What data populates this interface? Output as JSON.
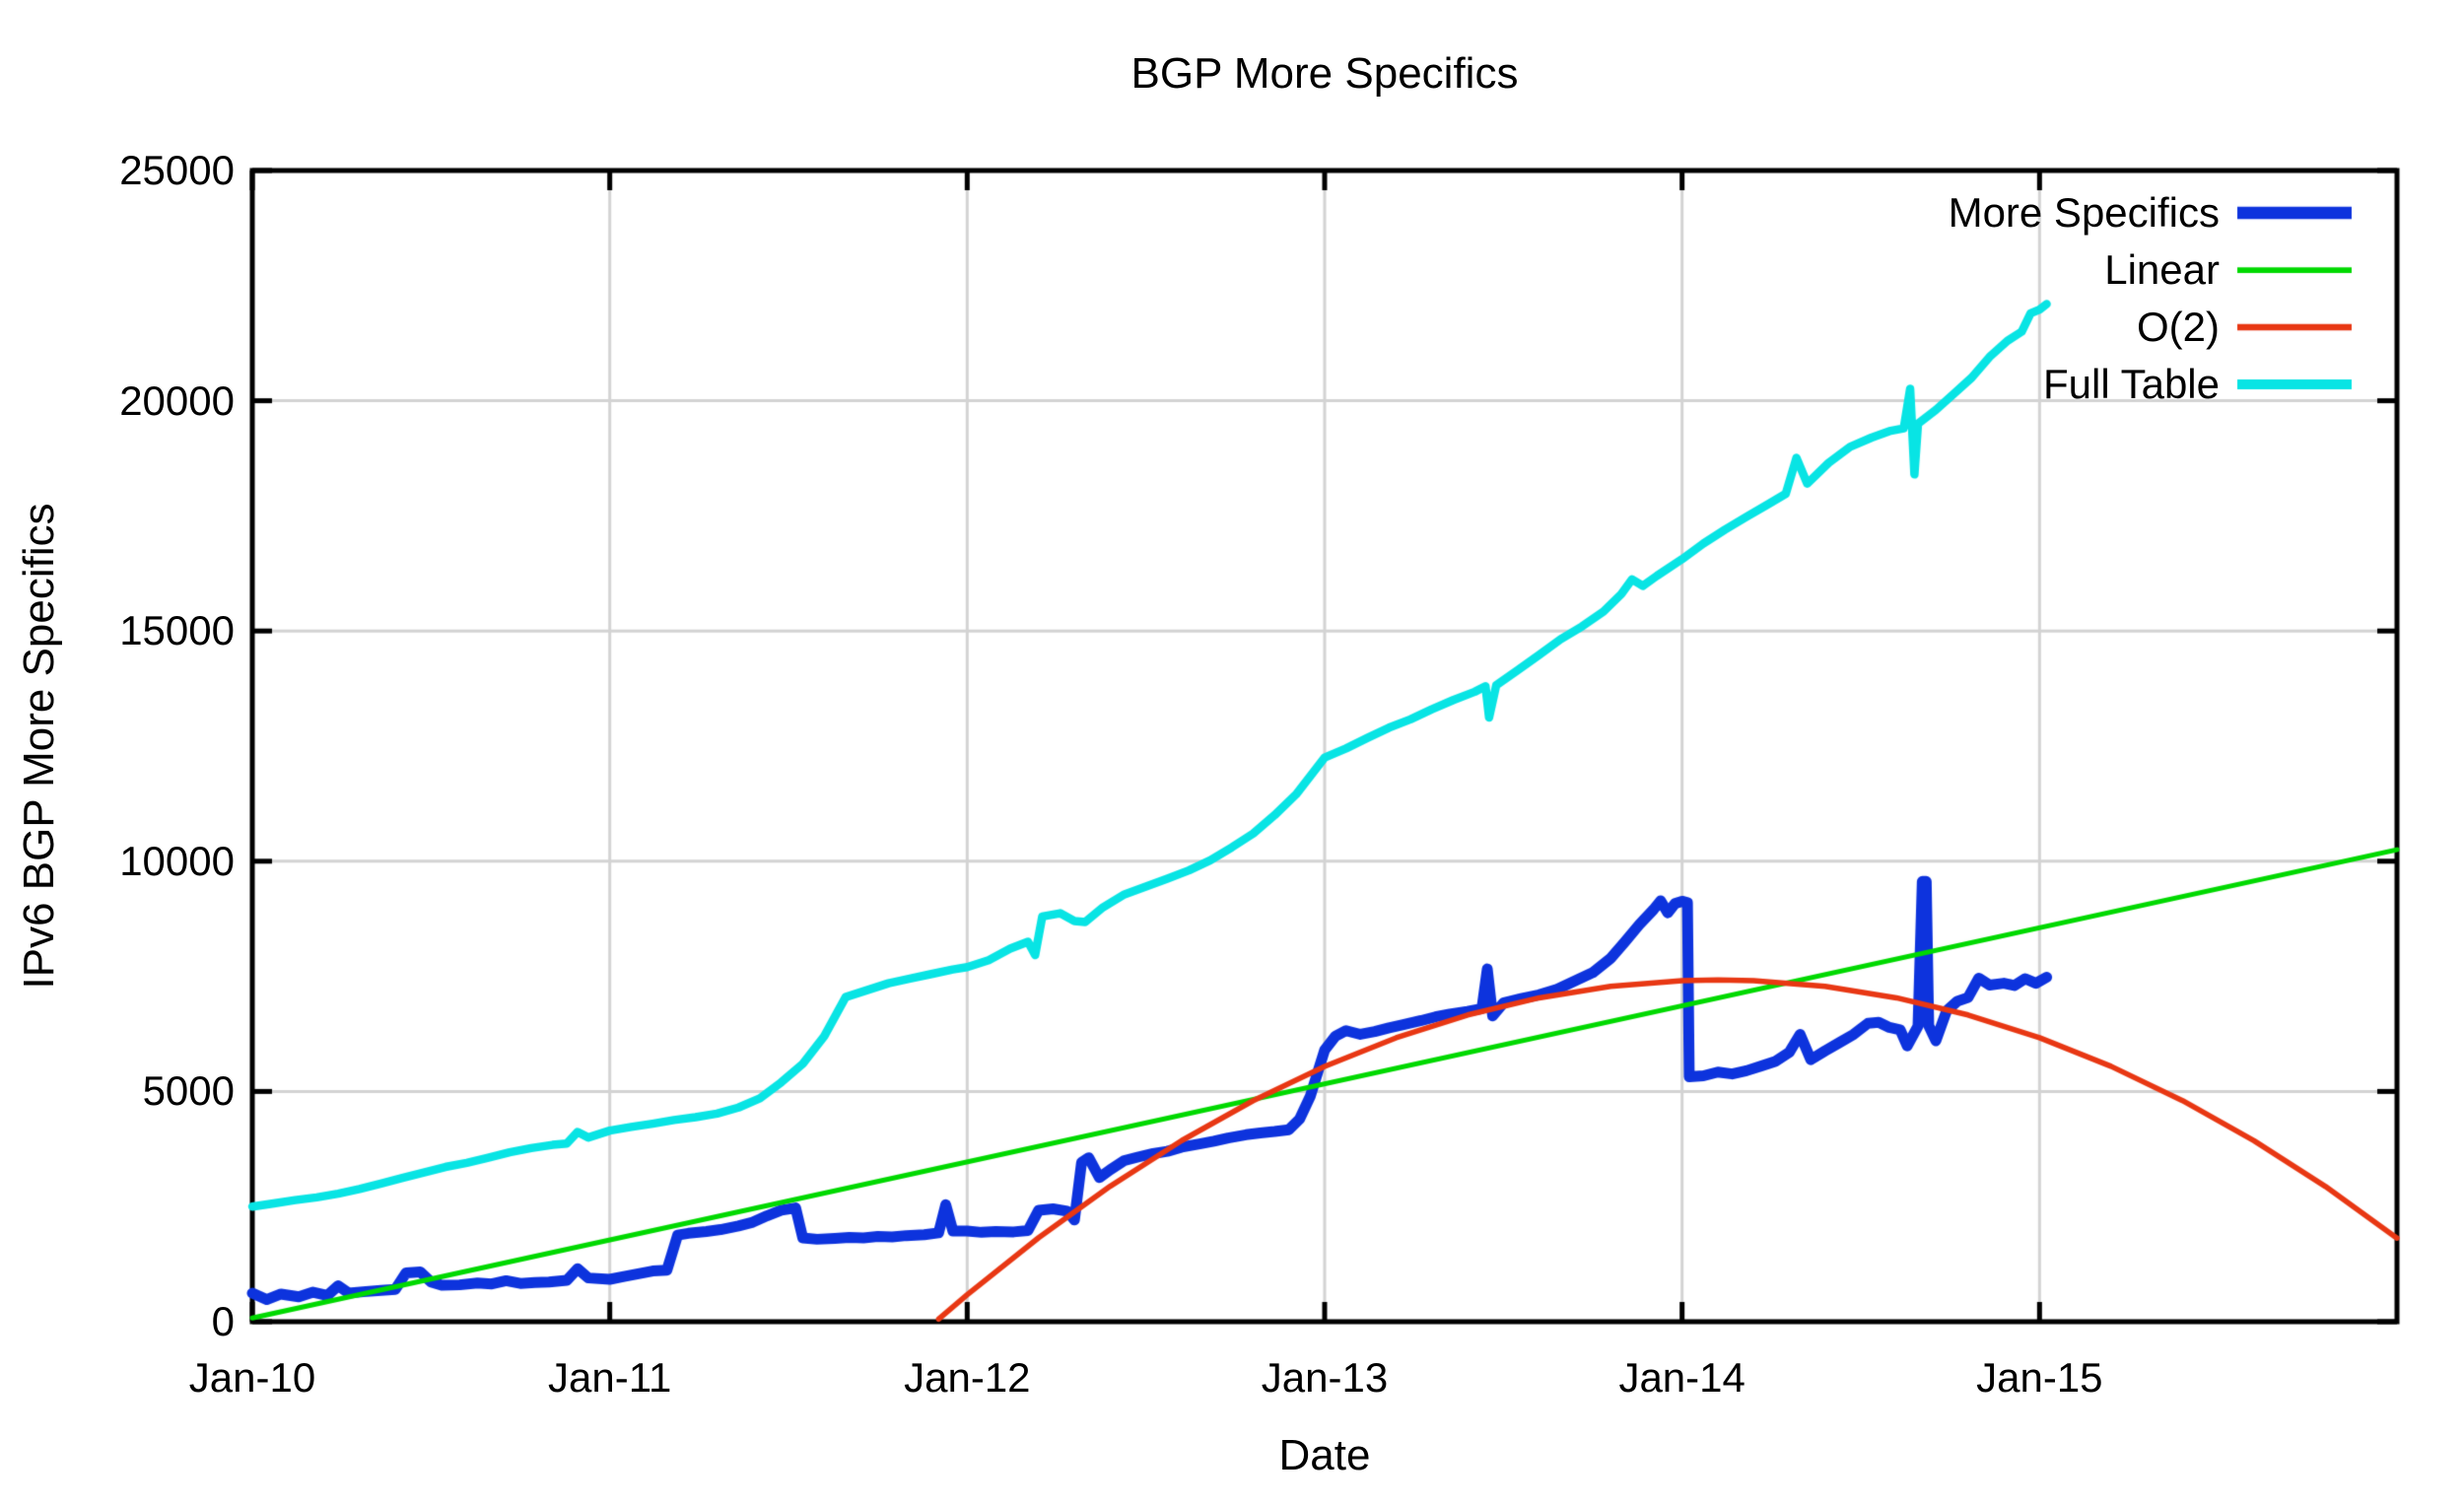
{
  "chart_data": {
    "type": "line",
    "title": "BGP More Specifics",
    "xlabel": "Date",
    "ylabel": "IPv6 BGP More Specifics",
    "x_range": [
      2010.0,
      2016.0
    ],
    "y_range": [
      0,
      25000
    ],
    "grid": true,
    "legend_position": "top-right-inside",
    "background": "#ffffff",
    "border_color": "#000000",
    "grid_color": "#d3d3d3",
    "text_color": "#000000",
    "x_ticks": [
      {
        "t": 2010,
        "label": "Jan-10"
      },
      {
        "t": 2011,
        "label": "Jan-11"
      },
      {
        "t": 2012,
        "label": "Jan-12"
      },
      {
        "t": 2013,
        "label": "Jan-13"
      },
      {
        "t": 2014,
        "label": "Jan-14"
      },
      {
        "t": 2015,
        "label": "Jan-15"
      }
    ],
    "y_ticks": [
      {
        "v": 0,
        "label": "0"
      },
      {
        "v": 5000,
        "label": "5000"
      },
      {
        "v": 10000,
        "label": "10000"
      },
      {
        "v": 15000,
        "label": "15000"
      },
      {
        "v": 20000,
        "label": "20000"
      },
      {
        "v": 25000,
        "label": "25000"
      }
    ],
    "series": [
      {
        "name": "More Specifics",
        "color": "#0d33dd",
        "width": 11,
        "points": [
          [
            2010.0,
            620
          ],
          [
            2010.04,
            480
          ],
          [
            2010.08,
            600
          ],
          [
            2010.13,
            540
          ],
          [
            2010.17,
            640
          ],
          [
            2010.21,
            570
          ],
          [
            2010.24,
            780
          ],
          [
            2010.27,
            620
          ],
          [
            2010.31,
            650
          ],
          [
            2010.36,
            680
          ],
          [
            2010.4,
            700
          ],
          [
            2010.43,
            1060
          ],
          [
            2010.47,
            1080
          ],
          [
            2010.5,
            860
          ],
          [
            2010.53,
            790
          ],
          [
            2010.58,
            800
          ],
          [
            2010.63,
            840
          ],
          [
            2010.67,
            820
          ],
          [
            2010.71,
            890
          ],
          [
            2010.75,
            830
          ],
          [
            2010.79,
            850
          ],
          [
            2010.83,
            860
          ],
          [
            2010.88,
            900
          ],
          [
            2010.91,
            1150
          ],
          [
            2010.94,
            950
          ],
          [
            2011.0,
            920
          ],
          [
            2011.04,
            980
          ],
          [
            2011.08,
            1040
          ],
          [
            2011.12,
            1100
          ],
          [
            2011.16,
            1120
          ],
          [
            2011.19,
            1880
          ],
          [
            2011.22,
            1920
          ],
          [
            2011.27,
            1960
          ],
          [
            2011.31,
            2000
          ],
          [
            2011.36,
            2080
          ],
          [
            2011.4,
            2160
          ],
          [
            2011.44,
            2300
          ],
          [
            2011.48,
            2420
          ],
          [
            2011.52,
            2470
          ],
          [
            2011.54,
            1820
          ],
          [
            2011.58,
            1790
          ],
          [
            2011.63,
            1810
          ],
          [
            2011.67,
            1830
          ],
          [
            2011.71,
            1820
          ],
          [
            2011.75,
            1850
          ],
          [
            2011.79,
            1840
          ],
          [
            2011.83,
            1870
          ],
          [
            2011.88,
            1890
          ],
          [
            2011.92,
            1930
          ],
          [
            2011.94,
            2540
          ],
          [
            2011.96,
            1970
          ],
          [
            2012.0,
            1970
          ],
          [
            2012.04,
            1940
          ],
          [
            2012.08,
            1960
          ],
          [
            2012.13,
            1950
          ],
          [
            2012.17,
            1980
          ],
          [
            2012.2,
            2420
          ],
          [
            2012.24,
            2450
          ],
          [
            2012.28,
            2400
          ],
          [
            2012.3,
            2210
          ],
          [
            2012.32,
            3460
          ],
          [
            2012.34,
            3560
          ],
          [
            2012.37,
            3130
          ],
          [
            2012.4,
            3300
          ],
          [
            2012.44,
            3500
          ],
          [
            2012.48,
            3580
          ],
          [
            2012.52,
            3650
          ],
          [
            2012.56,
            3700
          ],
          [
            2012.6,
            3790
          ],
          [
            2012.65,
            3860
          ],
          [
            2012.69,
            3920
          ],
          [
            2012.73,
            3990
          ],
          [
            2012.78,
            4060
          ],
          [
            2012.82,
            4100
          ],
          [
            2012.86,
            4130
          ],
          [
            2012.9,
            4170
          ],
          [
            2012.93,
            4400
          ],
          [
            2012.96,
            4900
          ],
          [
            2012.98,
            5400
          ],
          [
            2013.0,
            5900
          ],
          [
            2013.03,
            6200
          ],
          [
            2013.06,
            6320
          ],
          [
            2013.1,
            6240
          ],
          [
            2013.14,
            6300
          ],
          [
            2013.18,
            6380
          ],
          [
            2013.22,
            6450
          ],
          [
            2013.27,
            6540
          ],
          [
            2013.31,
            6620
          ],
          [
            2013.35,
            6680
          ],
          [
            2013.4,
            6740
          ],
          [
            2013.44,
            6800
          ],
          [
            2013.455,
            7660
          ],
          [
            2013.47,
            6640
          ],
          [
            2013.5,
            6920
          ],
          [
            2013.55,
            7020
          ],
          [
            2013.6,
            7100
          ],
          [
            2013.65,
            7220
          ],
          [
            2013.7,
            7400
          ],
          [
            2013.75,
            7580
          ],
          [
            2013.8,
            7890
          ],
          [
            2013.84,
            8250
          ],
          [
            2013.88,
            8620
          ],
          [
            2013.92,
            8950
          ],
          [
            2013.94,
            9140
          ],
          [
            2013.96,
            8880
          ],
          [
            2013.98,
            9080
          ],
          [
            2014.0,
            9130
          ],
          [
            2014.015,
            9100
          ],
          [
            2014.02,
            5320
          ],
          [
            2014.06,
            5340
          ],
          [
            2014.1,
            5420
          ],
          [
            2014.14,
            5380
          ],
          [
            2014.18,
            5450
          ],
          [
            2014.22,
            5550
          ],
          [
            2014.26,
            5650
          ],
          [
            2014.3,
            5850
          ],
          [
            2014.33,
            6240
          ],
          [
            2014.36,
            5690
          ],
          [
            2014.4,
            5880
          ],
          [
            2014.44,
            6060
          ],
          [
            2014.48,
            6240
          ],
          [
            2014.52,
            6480
          ],
          [
            2014.55,
            6500
          ],
          [
            2014.58,
            6390
          ],
          [
            2014.61,
            6340
          ],
          [
            2014.63,
            5990
          ],
          [
            2014.66,
            6420
          ],
          [
            2014.672,
            9560
          ],
          [
            2014.683,
            9560
          ],
          [
            2014.69,
            6430
          ],
          [
            2014.71,
            6100
          ],
          [
            2014.74,
            6750
          ],
          [
            2014.77,
            6960
          ],
          [
            2014.8,
            7040
          ],
          [
            2014.83,
            7460
          ],
          [
            2014.86,
            7310
          ],
          [
            2014.9,
            7350
          ],
          [
            2014.93,
            7300
          ],
          [
            2014.96,
            7450
          ],
          [
            2014.99,
            7350
          ],
          [
            2015.02,
            7480
          ]
        ]
      },
      {
        "name": "Linear",
        "color": "#00d900",
        "width": 5,
        "points": [
          [
            2010.0,
            80
          ],
          [
            2016.0,
            10250
          ]
        ]
      },
      {
        "name": "O(2)",
        "color": "#e83713",
        "width": 5.5,
        "points": [
          [
            2011.92,
            55
          ],
          [
            2012.0,
            585
          ],
          [
            2012.2,
            1825
          ],
          [
            2012.4,
            2941
          ],
          [
            2012.6,
            3933
          ],
          [
            2012.8,
            4800
          ],
          [
            2013.0,
            5545
          ],
          [
            2013.2,
            6165
          ],
          [
            2013.4,
            6661
          ],
          [
            2013.6,
            7033
          ],
          [
            2013.8,
            7281
          ],
          [
            2014.0,
            7405
          ],
          [
            2014.1,
            7420
          ],
          [
            2014.2,
            7405
          ],
          [
            2014.4,
            7281
          ],
          [
            2014.6,
            7033
          ],
          [
            2014.8,
            6661
          ],
          [
            2015.0,
            6166
          ],
          [
            2015.2,
            5546
          ],
          [
            2015.4,
            4801
          ],
          [
            2015.6,
            3931
          ],
          [
            2015.8,
            2936
          ],
          [
            2016.0,
            1816
          ]
        ]
      },
      {
        "name": "Full Table",
        "color": "#08e4e4",
        "width": 8.5,
        "points": [
          [
            2010.0,
            2500
          ],
          [
            2010.06,
            2570
          ],
          [
            2010.12,
            2640
          ],
          [
            2010.18,
            2700
          ],
          [
            2010.24,
            2780
          ],
          [
            2010.3,
            2880
          ],
          [
            2010.36,
            3000
          ],
          [
            2010.42,
            3120
          ],
          [
            2010.48,
            3240
          ],
          [
            2010.54,
            3360
          ],
          [
            2010.6,
            3450
          ],
          [
            2010.66,
            3560
          ],
          [
            2010.72,
            3680
          ],
          [
            2010.78,
            3770
          ],
          [
            2010.84,
            3840
          ],
          [
            2010.88,
            3870
          ],
          [
            2010.91,
            4120
          ],
          [
            2010.94,
            4000
          ],
          [
            2011.0,
            4150
          ],
          [
            2011.06,
            4230
          ],
          [
            2011.12,
            4300
          ],
          [
            2011.18,
            4380
          ],
          [
            2011.24,
            4440
          ],
          [
            2011.3,
            4520
          ],
          [
            2011.36,
            4650
          ],
          [
            2011.42,
            4850
          ],
          [
            2011.48,
            5200
          ],
          [
            2011.54,
            5600
          ],
          [
            2011.6,
            6200
          ],
          [
            2011.66,
            7050
          ],
          [
            2011.72,
            7200
          ],
          [
            2011.78,
            7350
          ],
          [
            2011.84,
            7450
          ],
          [
            2011.9,
            7550
          ],
          [
            2011.96,
            7650
          ],
          [
            2012.0,
            7700
          ],
          [
            2012.06,
            7850
          ],
          [
            2012.12,
            8100
          ],
          [
            2012.17,
            8250
          ],
          [
            2012.19,
            7960
          ],
          [
            2012.21,
            8800
          ],
          [
            2012.26,
            8870
          ],
          [
            2012.3,
            8700
          ],
          [
            2012.33,
            8680
          ],
          [
            2012.38,
            9000
          ],
          [
            2012.44,
            9280
          ],
          [
            2012.5,
            9450
          ],
          [
            2012.56,
            9620
          ],
          [
            2012.62,
            9800
          ],
          [
            2012.68,
            10020
          ],
          [
            2012.74,
            10300
          ],
          [
            2012.8,
            10600
          ],
          [
            2012.86,
            11000
          ],
          [
            2012.92,
            11450
          ],
          [
            2012.96,
            11850
          ],
          [
            2013.0,
            12250
          ],
          [
            2013.06,
            12450
          ],
          [
            2013.12,
            12680
          ],
          [
            2013.18,
            12900
          ],
          [
            2013.24,
            13080
          ],
          [
            2013.3,
            13300
          ],
          [
            2013.36,
            13500
          ],
          [
            2013.42,
            13680
          ],
          [
            2013.45,
            13800
          ],
          [
            2013.46,
            13120
          ],
          [
            2013.48,
            13820
          ],
          [
            2013.54,
            14150
          ],
          [
            2013.6,
            14480
          ],
          [
            2013.66,
            14820
          ],
          [
            2013.72,
            15100
          ],
          [
            2013.78,
            15420
          ],
          [
            2013.83,
            15800
          ],
          [
            2013.86,
            16120
          ],
          [
            2013.89,
            15980
          ],
          [
            2013.93,
            16200
          ],
          [
            2014.0,
            16560
          ],
          [
            2014.06,
            16900
          ],
          [
            2014.12,
            17200
          ],
          [
            2014.18,
            17480
          ],
          [
            2014.24,
            17750
          ],
          [
            2014.29,
            17980
          ],
          [
            2014.32,
            18760
          ],
          [
            2014.35,
            18200
          ],
          [
            2014.41,
            18650
          ],
          [
            2014.47,
            19000
          ],
          [
            2014.53,
            19200
          ],
          [
            2014.58,
            19340
          ],
          [
            2014.62,
            19400
          ],
          [
            2014.638,
            20260
          ],
          [
            2014.65,
            18400
          ],
          [
            2014.66,
            19500
          ],
          [
            2014.71,
            19800
          ],
          [
            2014.76,
            20150
          ],
          [
            2014.81,
            20500
          ],
          [
            2014.86,
            20950
          ],
          [
            2014.91,
            21300
          ],
          [
            2014.95,
            21500
          ],
          [
            2014.975,
            21900
          ],
          [
            2015.0,
            21980
          ],
          [
            2015.02,
            22100
          ]
        ]
      }
    ]
  }
}
